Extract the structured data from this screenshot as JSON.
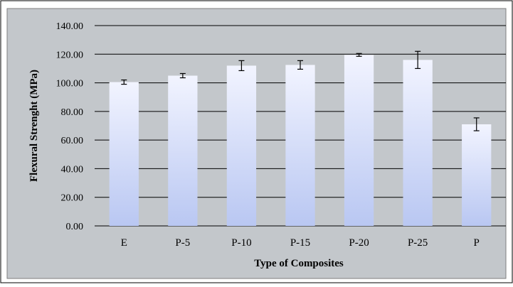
{
  "chart_data": {
    "type": "bar",
    "title": "",
    "xlabel": "Type of Composites",
    "ylabel": "Flexural Strenght (MPa)",
    "categories": [
      "E",
      "P-5",
      "P-10",
      "P-15",
      "P-20",
      "P-25",
      "P"
    ],
    "values": [
      100.5,
      105.0,
      112.0,
      112.5,
      119.5,
      116.0,
      71.0
    ],
    "errors": [
      1.5,
      1.5,
      3.5,
      3.0,
      1.0,
      6.0,
      4.5
    ],
    "ylim": [
      0,
      140
    ],
    "yticks": [
      0,
      20,
      40,
      60,
      80,
      100,
      120,
      140
    ],
    "ytick_labels": [
      "0.00",
      "20.00",
      "40.00",
      "60.00",
      "80.00",
      "100.00",
      "120.00",
      "140.00"
    ],
    "grid": true,
    "legend": "none",
    "colors": {
      "plot_background": "#c3c7cb",
      "outer_background": "#ffffff",
      "bar_top": "#f2f4ff",
      "bar_bottom": "#b9c7f2",
      "gridline": "#000000"
    }
  }
}
